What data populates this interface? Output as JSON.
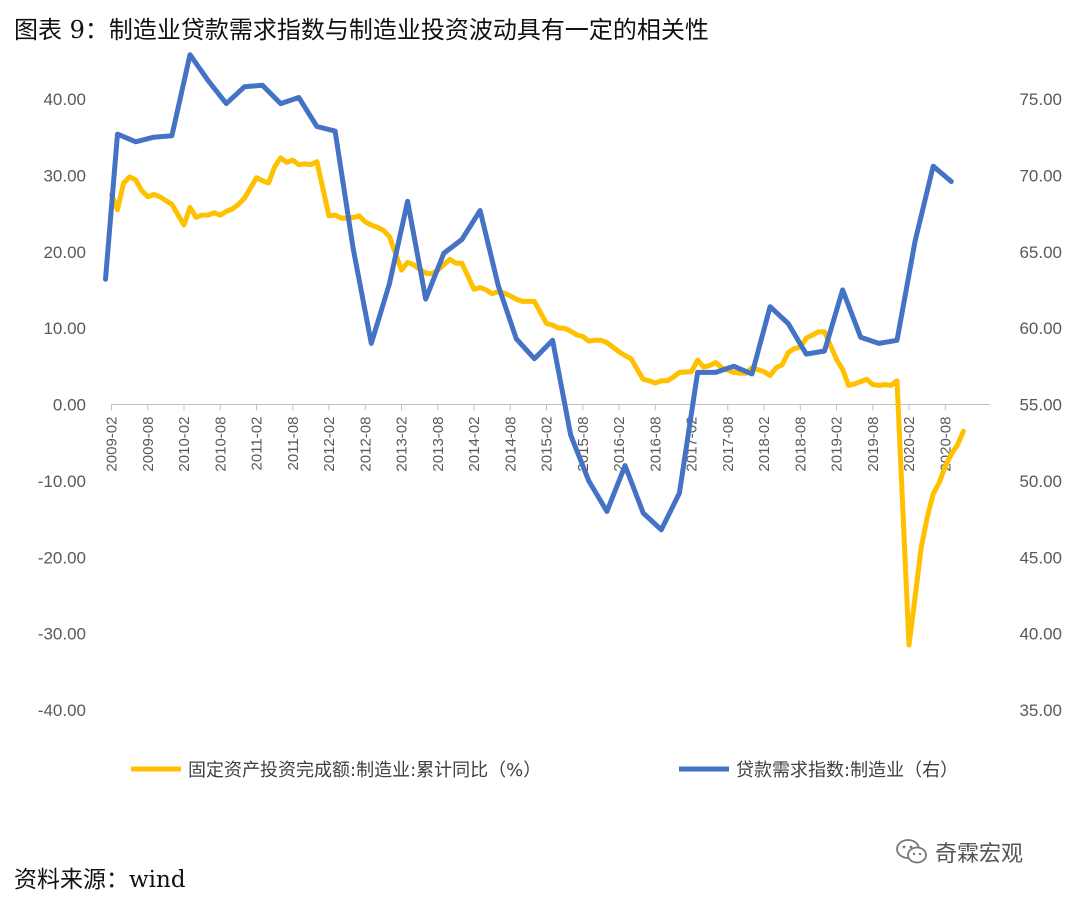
{
  "title": "图表 9：制造业贷款需求指数与制造业投资波动具有一定的相关性",
  "source": "资料来源：wind",
  "watermark": {
    "text": "奇霖宏观",
    "icon": "wechat-icon"
  },
  "colors": {
    "series_investment": "#FFC000",
    "series_loan": "#4472C4",
    "axis": "#595959"
  },
  "chart_data": {
    "type": "line",
    "title": "",
    "left_axis": {
      "ylim": [
        -40,
        40
      ],
      "ticks": [
        "40.00",
        "30.00",
        "20.00",
        "10.00",
        "0.00",
        "-10.00",
        "-20.00",
        "-30.00",
        "-40.00"
      ]
    },
    "right_axis": {
      "ylim": [
        35,
        75
      ],
      "ticks": [
        "75.00",
        "70.00",
        "65.00",
        "60.00",
        "55.00",
        "50.00",
        "45.00",
        "40.00",
        "35.00"
      ]
    },
    "x_labels": [
      "2009-02",
      "2009-08",
      "2010-02",
      "2010-08",
      "2011-02",
      "2011-08",
      "2012-02",
      "2012-08",
      "2013-02",
      "2013-08",
      "2014-02",
      "2014-08",
      "2015-02",
      "2015-08",
      "2016-02",
      "2016-08",
      "2017-02",
      "2017-08",
      "2018-02",
      "2018-08",
      "2019-02",
      "2019-08",
      "2020-02",
      "2020-08"
    ],
    "legend_position": "bottom",
    "series": [
      {
        "name": "固定资产投资完成额:制造业:累计同比（%）",
        "axis": "left",
        "color": "#FFC000",
        "points": [
          [
            "2009-02",
            27.5
          ],
          [
            "2009-03",
            25.5
          ],
          [
            "2009-04",
            29.0
          ],
          [
            "2009-05",
            29.8
          ],
          [
            "2009-06",
            29.4
          ],
          [
            "2009-07",
            28.0
          ],
          [
            "2009-08",
            27.2
          ],
          [
            "2009-09",
            27.5
          ],
          [
            "2009-10",
            27.2
          ],
          [
            "2009-11",
            26.7
          ],
          [
            "2009-12",
            26.2
          ],
          [
            "2010-02",
            23.5
          ],
          [
            "2010-03",
            25.8
          ],
          [
            "2010-04",
            24.5
          ],
          [
            "2010-05",
            24.8
          ],
          [
            "2010-06",
            24.8
          ],
          [
            "2010-07",
            25.1
          ],
          [
            "2010-08",
            24.8
          ],
          [
            "2010-09",
            25.3
          ],
          [
            "2010-10",
            25.6
          ],
          [
            "2010-11",
            26.2
          ],
          [
            "2010-12",
            27.0
          ],
          [
            "2011-02",
            29.7
          ],
          [
            "2011-03",
            29.3
          ],
          [
            "2011-04",
            29.0
          ],
          [
            "2011-05",
            31.1
          ],
          [
            "2011-06",
            32.3
          ],
          [
            "2011-07",
            31.7
          ],
          [
            "2011-08",
            32.0
          ],
          [
            "2011-09",
            31.4
          ],
          [
            "2011-10",
            31.5
          ],
          [
            "2011-11",
            31.4
          ],
          [
            "2011-12",
            31.8
          ],
          [
            "2012-02",
            24.7
          ],
          [
            "2012-03",
            24.8
          ],
          [
            "2012-04",
            24.4
          ],
          [
            "2012-05",
            24.4
          ],
          [
            "2012-06",
            24.5
          ],
          [
            "2012-07",
            24.7
          ],
          [
            "2012-08",
            23.9
          ],
          [
            "2012-09",
            23.5
          ],
          [
            "2012-10",
            23.2
          ],
          [
            "2012-11",
            22.8
          ],
          [
            "2012-12",
            22.0
          ],
          [
            "2013-02",
            17.6
          ],
          [
            "2013-03",
            18.6
          ],
          [
            "2013-04",
            18.3
          ],
          [
            "2013-05",
            17.7
          ],
          [
            "2013-06",
            17.2
          ],
          [
            "2013-07",
            17.1
          ],
          [
            "2013-08",
            17.6
          ],
          [
            "2013-09",
            18.3
          ],
          [
            "2013-10",
            19.0
          ],
          [
            "2013-11",
            18.5
          ],
          [
            "2013-12",
            18.5
          ],
          [
            "2014-02",
            15.1
          ],
          [
            "2014-03",
            15.3
          ],
          [
            "2014-04",
            15.0
          ],
          [
            "2014-05",
            14.5
          ],
          [
            "2014-06",
            14.8
          ],
          [
            "2014-07",
            14.6
          ],
          [
            "2014-08",
            14.2
          ],
          [
            "2014-09",
            13.8
          ],
          [
            "2014-10",
            13.5
          ],
          [
            "2014-11",
            13.5
          ],
          [
            "2014-12",
            13.5
          ],
          [
            "2015-02",
            10.6
          ],
          [
            "2015-03",
            10.4
          ],
          [
            "2015-04",
            10.0
          ],
          [
            "2015-05",
            10.0
          ],
          [
            "2015-06",
            9.6
          ],
          [
            "2015-07",
            9.1
          ],
          [
            "2015-08",
            8.9
          ],
          [
            "2015-09",
            8.3
          ],
          [
            "2015-10",
            8.4
          ],
          [
            "2015-11",
            8.4
          ],
          [
            "2015-12",
            8.1
          ],
          [
            "2016-02",
            6.9
          ],
          [
            "2016-03",
            6.4
          ],
          [
            "2016-04",
            6.0
          ],
          [
            "2016-05",
            4.6
          ],
          [
            "2016-06",
            3.3
          ],
          [
            "2016-07",
            3.1
          ],
          [
            "2016-08",
            2.8
          ],
          [
            "2016-09",
            3.1
          ],
          [
            "2016-10",
            3.1
          ],
          [
            "2016-11",
            3.6
          ],
          [
            "2016-12",
            4.2
          ],
          [
            "2017-02",
            4.3
          ],
          [
            "2017-03",
            5.8
          ],
          [
            "2017-04",
            4.9
          ],
          [
            "2017-05",
            5.1
          ],
          [
            "2017-06",
            5.5
          ],
          [
            "2017-07",
            4.8
          ],
          [
            "2017-08",
            4.5
          ],
          [
            "2017-09",
            4.2
          ],
          [
            "2017-10",
            4.1
          ],
          [
            "2017-11",
            4.1
          ],
          [
            "2017-12",
            4.8
          ],
          [
            "2018-02",
            4.3
          ],
          [
            "2018-03",
            3.8
          ],
          [
            "2018-04",
            4.8
          ],
          [
            "2018-05",
            5.2
          ],
          [
            "2018-06",
            6.8
          ],
          [
            "2018-07",
            7.3
          ],
          [
            "2018-08",
            7.5
          ],
          [
            "2018-09",
            8.7
          ],
          [
            "2018-10",
            9.1
          ],
          [
            "2018-11",
            9.5
          ],
          [
            "2018-12",
            9.5
          ],
          [
            "2019-02",
            5.9
          ],
          [
            "2019-03",
            4.6
          ],
          [
            "2019-04",
            2.5
          ],
          [
            "2019-05",
            2.7
          ],
          [
            "2019-06",
            3.0
          ],
          [
            "2019-07",
            3.3
          ],
          [
            "2019-08",
            2.6
          ],
          [
            "2019-09",
            2.5
          ],
          [
            "2019-10",
            2.6
          ],
          [
            "2019-11",
            2.5
          ],
          [
            "2019-12",
            3.1
          ],
          [
            "2020-02",
            -31.5
          ],
          [
            "2020-03",
            -25.2
          ],
          [
            "2020-04",
            -18.8
          ],
          [
            "2020-05",
            -14.8
          ],
          [
            "2020-06",
            -11.7
          ],
          [
            "2020-07",
            -10.2
          ],
          [
            "2020-08",
            -8.1
          ],
          [
            "2020-09",
            -6.5
          ],
          [
            "2020-10",
            -5.3
          ],
          [
            "2020-11",
            -3.5
          ]
        ]
      },
      {
        "name": "贷款需求指数:制造业（右）",
        "axis": "right",
        "color": "#4472C4",
        "points": [
          [
            "2009-01",
            63.2
          ],
          [
            "2009-03",
            72.7
          ],
          [
            "2009-06",
            72.2
          ],
          [
            "2009-09",
            72.5
          ],
          [
            "2009-12",
            72.6
          ],
          [
            "2010-03",
            77.9
          ],
          [
            "2010-06",
            76.2
          ],
          [
            "2010-09",
            74.7
          ],
          [
            "2010-12",
            75.8
          ],
          [
            "2011-03",
            75.9
          ],
          [
            "2011-06",
            74.7
          ],
          [
            "2011-09",
            75.1
          ],
          [
            "2011-12",
            73.2
          ],
          [
            "2012-03",
            72.9
          ],
          [
            "2012-06",
            65.2
          ],
          [
            "2012-09",
            59.0
          ],
          [
            "2012-12",
            62.9
          ],
          [
            "2013-03",
            68.3
          ],
          [
            "2013-06",
            61.9
          ],
          [
            "2013-09",
            64.9
          ],
          [
            "2013-12",
            65.8
          ],
          [
            "2014-03",
            67.7
          ],
          [
            "2014-06",
            62.8
          ],
          [
            "2014-09",
            59.3
          ],
          [
            "2014-12",
            58.0
          ],
          [
            "2015-03",
            59.2
          ],
          [
            "2015-06",
            53.0
          ],
          [
            "2015-09",
            50.0
          ],
          [
            "2015-12",
            48.0
          ],
          [
            "2016-03",
            51.0
          ],
          [
            "2016-06",
            47.9
          ],
          [
            "2016-09",
            46.8
          ],
          [
            "2016-12",
            49.2
          ],
          [
            "2017-03",
            57.1
          ],
          [
            "2017-06",
            57.1
          ],
          [
            "2017-09",
            57.5
          ],
          [
            "2017-12",
            57.0
          ],
          [
            "2018-03",
            61.4
          ],
          [
            "2018-06",
            60.3
          ],
          [
            "2018-09",
            58.3
          ],
          [
            "2018-12",
            58.5
          ],
          [
            "2019-03",
            62.5
          ],
          [
            "2019-06",
            59.4
          ],
          [
            "2019-09",
            59.0
          ],
          [
            "2019-12",
            59.2
          ],
          [
            "2020-03",
            65.7
          ],
          [
            "2020-06",
            70.6
          ],
          [
            "2020-09",
            69.6
          ]
        ]
      }
    ]
  }
}
